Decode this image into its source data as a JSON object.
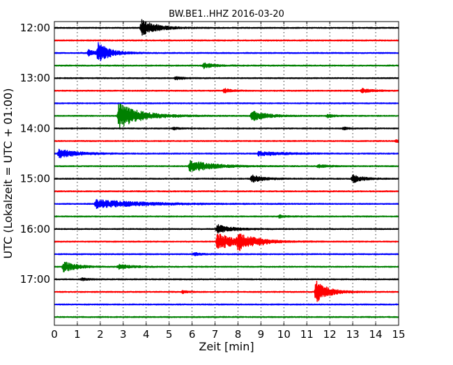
{
  "chart_data": {
    "type": "line",
    "title": "BW.BE1..HHZ 2016-03-20",
    "xlabel": "Zeit  [min]",
    "ylabel": "UTC (Lokalzeit = UTC + 01:00)",
    "xlim": [
      0,
      15
    ],
    "xticks": [
      "0",
      "1",
      "2",
      "3",
      "4",
      "5",
      "6",
      "7",
      "8",
      "9",
      "10",
      "11",
      "12",
      "13",
      "14",
      "15"
    ],
    "yticks": [
      {
        "label": "12:00",
        "row": 0
      },
      {
        "label": "13:00",
        "row": 4
      },
      {
        "label": "14:00",
        "row": 8
      },
      {
        "label": "15:00",
        "row": 12
      },
      {
        "label": "16:00",
        "row": 16
      },
      {
        "label": "17:00",
        "row": 20
      }
    ],
    "grid": true,
    "row_minutes": 15,
    "color_cycle": [
      "#000000",
      "#ff0000",
      "#0000ff",
      "#008000"
    ],
    "series": [
      {
        "start": "12:00",
        "events": [
          {
            "t": 3.8,
            "amp": 12,
            "dur": 0.6
          }
        ]
      },
      {
        "start": "12:15",
        "events": []
      },
      {
        "start": "12:30",
        "events": [
          {
            "t": 1.9,
            "amp": 14,
            "dur": 0.5
          },
          {
            "t": 1.5,
            "amp": 5,
            "dur": 0.3
          }
        ]
      },
      {
        "start": "12:45",
        "events": [
          {
            "t": 6.5,
            "amp": 4,
            "dur": 0.4
          }
        ]
      },
      {
        "start": "13:00",
        "events": [
          {
            "t": 5.3,
            "amp": 2.5,
            "dur": 0.3
          }
        ]
      },
      {
        "start": "13:15",
        "events": [
          {
            "t": 7.4,
            "amp": 3,
            "dur": 0.3
          },
          {
            "t": 13.4,
            "amp": 3,
            "dur": 0.4
          }
        ]
      },
      {
        "start": "13:30",
        "events": []
      },
      {
        "start": "13:45",
        "events": [
          {
            "t": 2.8,
            "amp": 18,
            "dur": 0.9
          },
          {
            "t": 8.6,
            "amp": 7,
            "dur": 0.6
          },
          {
            "t": 11.9,
            "amp": 2,
            "dur": 0.3
          }
        ]
      },
      {
        "start": "14:00",
        "events": [
          {
            "t": 5.2,
            "amp": 2,
            "dur": 0.2
          },
          {
            "t": 12.6,
            "amp": 2,
            "dur": 0.2
          }
        ]
      },
      {
        "start": "14:15",
        "events": [
          {
            "t": 14.9,
            "amp": 2,
            "dur": 0.3
          }
        ]
      },
      {
        "start": "14:30",
        "events": [
          {
            "t": 0.2,
            "amp": 6,
            "dur": 0.8
          },
          {
            "t": 8.9,
            "amp": 3,
            "dur": 1.0
          }
        ]
      },
      {
        "start": "14:45",
        "events": [
          {
            "t": 5.9,
            "amp": 9,
            "dur": 0.9
          },
          {
            "t": 11.5,
            "amp": 2,
            "dur": 0.4
          }
        ]
      },
      {
        "start": "15:00",
        "events": [
          {
            "t": 8.6,
            "amp": 5,
            "dur": 0.5
          },
          {
            "t": 13.0,
            "amp": 6,
            "dur": 0.4
          }
        ]
      },
      {
        "start": "15:15",
        "events": []
      },
      {
        "start": "15:30",
        "events": [
          {
            "t": 1.8,
            "amp": 6,
            "dur": 1.8
          }
        ]
      },
      {
        "start": "15:45",
        "events": [
          {
            "t": 9.8,
            "amp": 2,
            "dur": 0.3
          }
        ]
      },
      {
        "start": "16:00",
        "events": [
          {
            "t": 7.1,
            "amp": 6,
            "dur": 0.6
          }
        ]
      },
      {
        "start": "16:15",
        "events": [
          {
            "t": 7.1,
            "amp": 12,
            "dur": 0.8
          },
          {
            "t": 8.0,
            "amp": 10,
            "dur": 0.7
          },
          {
            "t": 8.9,
            "amp": 3,
            "dur": 0.2
          }
        ]
      },
      {
        "start": "16:30",
        "events": [
          {
            "t": 6.1,
            "amp": 2,
            "dur": 0.3
          }
        ]
      },
      {
        "start": "16:45",
        "events": [
          {
            "t": 0.4,
            "amp": 8,
            "dur": 0.5
          },
          {
            "t": 2.8,
            "amp": 3,
            "dur": 0.6
          }
        ]
      },
      {
        "start": "17:00",
        "events": [
          {
            "t": 1.2,
            "amp": 1.5,
            "dur": 0.3
          }
        ]
      },
      {
        "start": "17:15",
        "events": [
          {
            "t": 11.4,
            "amp": 16,
            "dur": 0.5
          },
          {
            "t": 5.6,
            "amp": 2,
            "dur": 0.2
          }
        ]
      },
      {
        "start": "17:30",
        "events": []
      },
      {
        "start": "17:45",
        "events": []
      }
    ]
  }
}
